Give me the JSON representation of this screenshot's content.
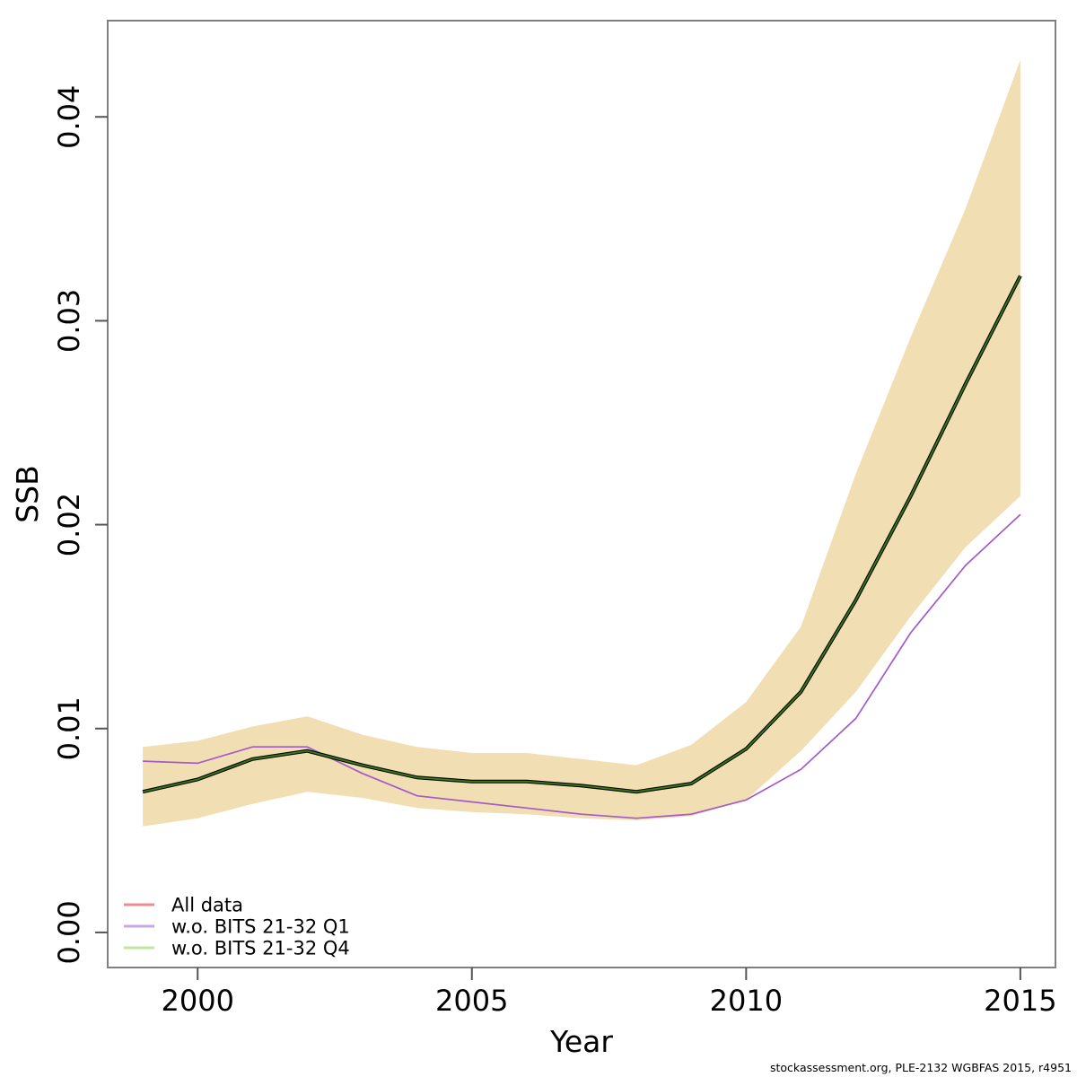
{
  "footer": {
    "attribution": "stockassessment.org, PLE-2132 WGBFAS 2015, r4951"
  },
  "chart_data": {
    "type": "line",
    "title": "",
    "xlabel": "Year",
    "ylabel": "SSB",
    "x": [
      1999,
      2000,
      2001,
      2002,
      2003,
      2004,
      2005,
      2006,
      2007,
      2008,
      2009,
      2010,
      2011,
      2012,
      2013,
      2014,
      2015
    ],
    "series": [
      {
        "name": "All data",
        "legend_color": "#f28c8c",
        "plot_color": "#e06060",
        "values": [
          0.0069,
          0.0075,
          0.0085,
          0.0089,
          0.0082,
          0.0076,
          0.0074,
          0.0074,
          0.0072,
          0.0069,
          0.0073,
          0.009,
          0.0118,
          0.0163,
          0.0214,
          0.0269,
          0.0322
        ],
        "note": "coincides with the w.o. BITS 21-32 Q4 line and is hidden beneath it"
      },
      {
        "name": "w.o. BITS 21-32 Q1",
        "legend_color": "#c9a7e0",
        "plot_color": "#a35bc8",
        "values": [
          0.0084,
          0.0083,
          0.0091,
          0.0091,
          0.0078,
          0.0067,
          0.0064,
          0.0061,
          0.0058,
          0.0056,
          0.0058,
          0.0065,
          0.008,
          0.0105,
          0.0147,
          0.018,
          0.0205
        ]
      },
      {
        "name": "w.o. BITS 21-32 Q4",
        "legend_color": "#bce99c",
        "plot_color": "#3a7a10",
        "base_outline_color": "#000000",
        "values": [
          0.0069,
          0.0075,
          0.0085,
          0.0089,
          0.0082,
          0.0076,
          0.0074,
          0.0074,
          0.0072,
          0.0069,
          0.0073,
          0.009,
          0.0118,
          0.0163,
          0.0214,
          0.0269,
          0.0322
        ]
      }
    ],
    "band": {
      "name": "confidence-band",
      "color": "#f2deb3",
      "lower": [
        0.0052,
        0.0056,
        0.0063,
        0.0069,
        0.0066,
        0.0061,
        0.0059,
        0.0058,
        0.0056,
        0.0055,
        0.0057,
        0.0065,
        0.0089,
        0.0118,
        0.0155,
        0.0189,
        0.0214
      ],
      "upper": [
        0.0091,
        0.0094,
        0.0101,
        0.0106,
        0.0097,
        0.0091,
        0.0088,
        0.0088,
        0.0085,
        0.0082,
        0.0092,
        0.0113,
        0.015,
        0.0225,
        0.0292,
        0.0355,
        0.0428
      ]
    },
    "xticks": [
      "2000",
      "2005",
      "2010",
      "2015"
    ],
    "yticks": [
      "0.00",
      "0.01",
      "0.02",
      "0.03",
      "0.04"
    ],
    "xlim": [
      1998.36,
      2015.64
    ],
    "ylim": [
      -0.00172,
      0.04472
    ],
    "grid": false,
    "legend_position": "bottom-left",
    "axis_color": "#7f7f7f",
    "tick_color": "#555555"
  }
}
